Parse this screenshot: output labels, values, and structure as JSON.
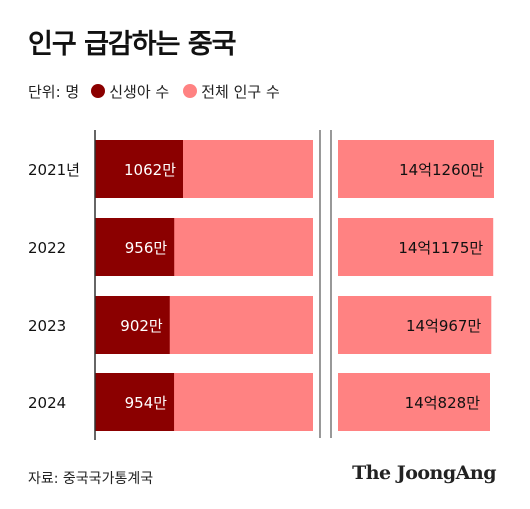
{
  "title": "인구 급감하는 중국",
  "legend": {
    "unit_label": "단위: 명",
    "items": [
      {
        "label": "신생아 수",
        "color": "#8b0000"
      },
      {
        "label": "전체 인구 수",
        "color": "#ff8282"
      }
    ]
  },
  "source": "자료: 중국국가통계국",
  "logo": "The JoongAng",
  "chart_data": {
    "type": "bar",
    "orientation": "horizontal",
    "stacked": "overlay",
    "axis_break": true,
    "categories": [
      "2021년",
      "2022",
      "2023",
      "2024"
    ],
    "series": [
      {
        "name": "신생아 수",
        "color": "#8b0000",
        "values": [
          10620000,
          9560000,
          9020000,
          9540000
        ],
        "labels": [
          "1062만",
          "956만",
          "902만",
          "954만"
        ]
      },
      {
        "name": "전체 인구 수",
        "color": "#ff8282",
        "values": [
          1412600000,
          1411750000,
          1409670000,
          1408280000
        ],
        "labels": [
          "14억1260만",
          "14억1175만",
          "14억967만",
          "14억828만"
        ]
      }
    ],
    "grid": false,
    "legend_position": "top-left"
  }
}
